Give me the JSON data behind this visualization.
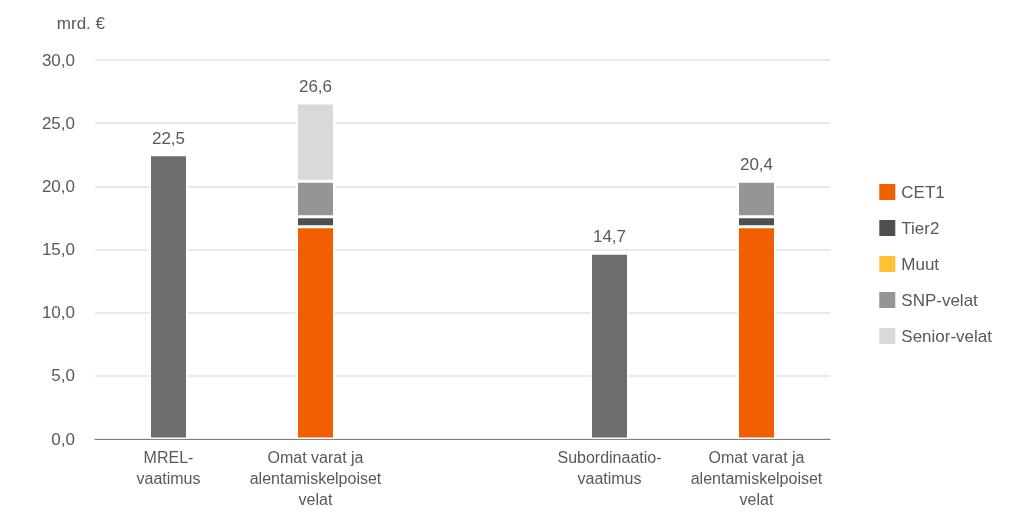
{
  "chart_data": {
    "type": "bar",
    "stacked": true,
    "ylabel": "mrd. €",
    "categories": [
      "MREL-vaatimus",
      "Omat varat ja alentamiskelpoiset velat",
      null,
      "Subordinaatio-vaatimus",
      "Omat varat ja alentamiskelpoiset velat"
    ],
    "series": [
      {
        "color": "#6d6d6d",
        "values": [
          22.5,
          null,
          null,
          14.7,
          null
        ]
      },
      {
        "name": "CET1",
        "color": "#f25f00",
        "values": [
          null,
          16.8,
          null,
          null,
          16.8
        ]
      },
      {
        "name": "Tier2",
        "color": "#4f4f4f",
        "values": [
          null,
          0.8,
          null,
          null,
          0.8
        ]
      },
      {
        "name": "Muut",
        "color": "#ffc133",
        "values": [
          null,
          null,
          null,
          null,
          null
        ]
      },
      {
        "name": "SNP-velat",
        "color": "#959595",
        "values": [
          null,
          2.8,
          null,
          null,
          2.8
        ]
      },
      {
        "name": "Senior-velat",
        "color": "#d9d9d9",
        "values": [
          null,
          6.2,
          null,
          null,
          null
        ]
      }
    ],
    "totals": [
      "22,5",
      "26,6",
      null,
      "14,7",
      "20,4"
    ],
    "ylim": [
      0,
      30
    ],
    "yticks": [
      {
        "value": 0,
        "label": "0,0"
      },
      {
        "value": 5,
        "label": "5,0"
      },
      {
        "value": 10,
        "label": "10,0"
      },
      {
        "value": 15,
        "label": "15,0"
      },
      {
        "value": 20,
        "label": "20,0"
      },
      {
        "value": 25,
        "label": "25,0"
      },
      {
        "value": 30,
        "label": "30,0"
      }
    ],
    "grid": "y",
    "legend": "right"
  }
}
